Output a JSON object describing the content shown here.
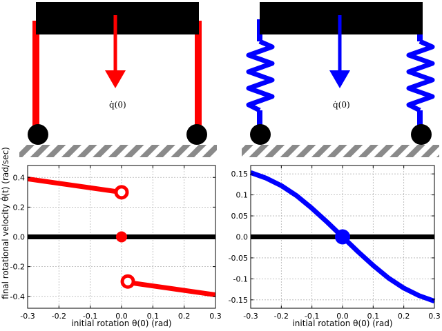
{
  "figure": {
    "colors": {
      "left": "#ff0000",
      "right": "#0000ff",
      "black": "#000000",
      "grid": "#b0b0b0",
      "ground_stripe": "#8a8a8a"
    },
    "diagrams": [
      {
        "name": "rigid-legs",
        "leg_style": "rigid",
        "velocity_label": "q̇(0)"
      },
      {
        "name": "spring-legs",
        "leg_style": "spring",
        "velocity_label": "q̇(0)"
      }
    ]
  },
  "chart_data": [
    {
      "type": "line",
      "xlabel": "initial rotation θ(0) (rad)",
      "ylabel": "final rotational velocity θ̇(t) (rad/sec)",
      "xlim": [
        -0.3,
        0.3
      ],
      "ylim": [
        -0.48,
        0.48
      ],
      "xticks": [
        "-0.3",
        "-0.2",
        "-0.1",
        "0.0",
        "0.1",
        "0.2",
        "0.3"
      ],
      "yticks": [
        "-0.4",
        "-0.2",
        "0.0",
        "0.2",
        "0.4"
      ],
      "xtick_values": [
        -0.3,
        -0.2,
        -0.1,
        0.0,
        0.1,
        0.2,
        0.3
      ],
      "ytick_values": [
        -0.4,
        -0.2,
        0.0,
        0.2,
        0.4
      ],
      "grid": true,
      "zero_line": {
        "x": [
          -0.3,
          0.3
        ],
        "y": [
          0,
          0
        ]
      },
      "series": [
        {
          "values_x": [
            -0.3,
            0.0
          ],
          "values_y": [
            0.39,
            0.3
          ]
        },
        {
          "values_x": [
            0.0,
            0.3
          ],
          "values_y": [
            -0.3,
            -0.39
          ]
        }
      ],
      "markers": [
        {
          "x": 0.0,
          "y": 0.3,
          "style": "open"
        },
        {
          "x": 0.0,
          "y": 0.0,
          "style": "filled"
        },
        {
          "x": 0.02,
          "y": -0.3,
          "style": "open"
        }
      ]
    },
    {
      "type": "line",
      "xlabel": "initial rotation θ(0) (rad)",
      "ylabel": "",
      "xlim": [
        -0.3,
        0.3
      ],
      "ylim": [
        -0.17,
        0.17
      ],
      "xticks": [
        "-0.3",
        "-0.2",
        "-0.1",
        "0.0",
        "0.1",
        "0.2",
        "0.3"
      ],
      "yticks": [
        "-0.15",
        "-0.1",
        "-0.05",
        "0.0",
        "0.05",
        "0.1",
        "0.15"
      ],
      "xtick_values": [
        -0.3,
        -0.2,
        -0.1,
        0.0,
        0.1,
        0.2,
        0.3
      ],
      "ytick_values": [
        -0.15,
        -0.1,
        -0.05,
        0.0,
        0.05,
        0.1,
        0.15
      ],
      "grid": true,
      "zero_line": {
        "x": [
          -0.3,
          0.3
        ],
        "y": [
          0,
          0
        ]
      },
      "series": [
        {
          "values_x": [
            -0.3,
            -0.25,
            -0.2,
            -0.15,
            -0.1,
            -0.05,
            0.0,
            0.05,
            0.1,
            0.15,
            0.2,
            0.25,
            0.3
          ],
          "values_y": [
            0.153,
            0.14,
            0.122,
            0.098,
            0.068,
            0.035,
            0.0,
            -0.035,
            -0.068,
            -0.098,
            -0.122,
            -0.14,
            -0.153
          ]
        }
      ],
      "markers": [
        {
          "x": 0.0,
          "y": 0.0,
          "style": "filled"
        }
      ]
    }
  ]
}
